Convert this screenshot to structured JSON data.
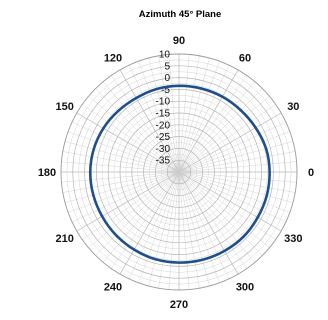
{
  "chart_data": {
    "type": "polar-line",
    "title": "Azimuth 45° Plane",
    "radial_axis": {
      "min": -40,
      "max": 10,
      "step": 5,
      "tick_labels": [
        "10",
        "5",
        "0",
        "-5",
        "-10",
        "-15",
        "-20",
        "-25",
        "-30",
        "-35"
      ]
    },
    "angular_axis": {
      "labels": [
        "0",
        "30",
        "60",
        "90",
        "120",
        "150",
        "180",
        "210",
        "240",
        "270",
        "300",
        "330"
      ],
      "direction": "counterclockwise",
      "zero_position": "right"
    },
    "grid": true,
    "series": [
      {
        "color": "#1f4e8c",
        "angles": [
          0,
          15,
          30,
          45,
          60,
          75,
          90,
          105,
          120,
          135,
          150,
          165,
          180,
          195,
          210,
          225,
          240,
          255,
          270,
          285,
          300,
          315,
          330,
          345
        ],
        "values": [
          -1.6,
          -1.8,
          -2.5,
          -3.0,
          -3.2,
          -3.4,
          -3.5,
          -3.6,
          -3.8,
          -3.5,
          -3.0,
          -2.6,
          -2.4,
          -2.4,
          -2.4,
          -2.2,
          -2.0,
          -1.7,
          -1.6,
          -1.5,
          -1.4,
          -1.3,
          -1.5,
          -1.5
        ]
      }
    ]
  }
}
